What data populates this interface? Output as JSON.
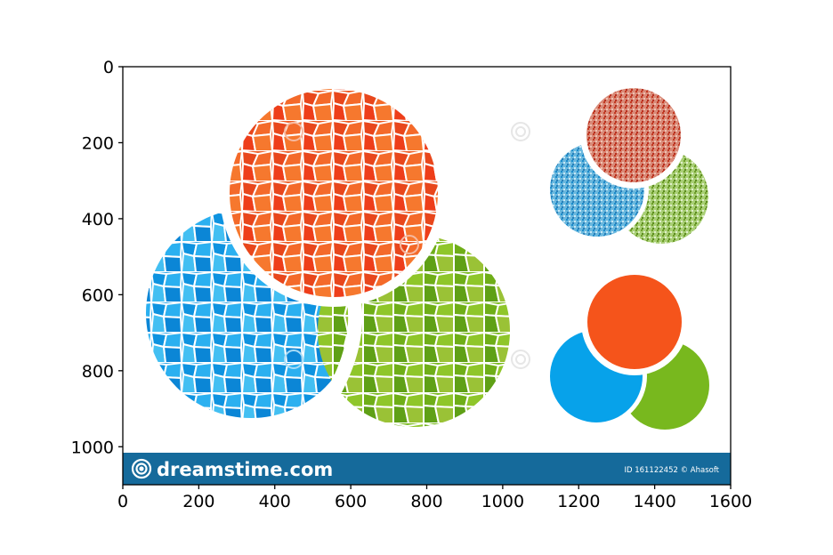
{
  "plot": {
    "x_ticks": [
      "0",
      "200",
      "400",
      "600",
      "800",
      "1000",
      "1200",
      "1400",
      "1600"
    ],
    "y_ticks": [
      "0",
      "200",
      "400",
      "600",
      "800",
      "1000"
    ],
    "xlim": [
      0,
      1600
    ],
    "ylim": [
      0,
      1100
    ],
    "y_inverted": true
  },
  "image": {
    "description_colors": {
      "orange": "#f0521f",
      "blue": "#1aa4ea",
      "green": "#78b81e",
      "banner": "#156a9b"
    },
    "banner": {
      "brand": "dreamstime.com",
      "id_text": "ID 161122452 © Ahasoft"
    }
  }
}
